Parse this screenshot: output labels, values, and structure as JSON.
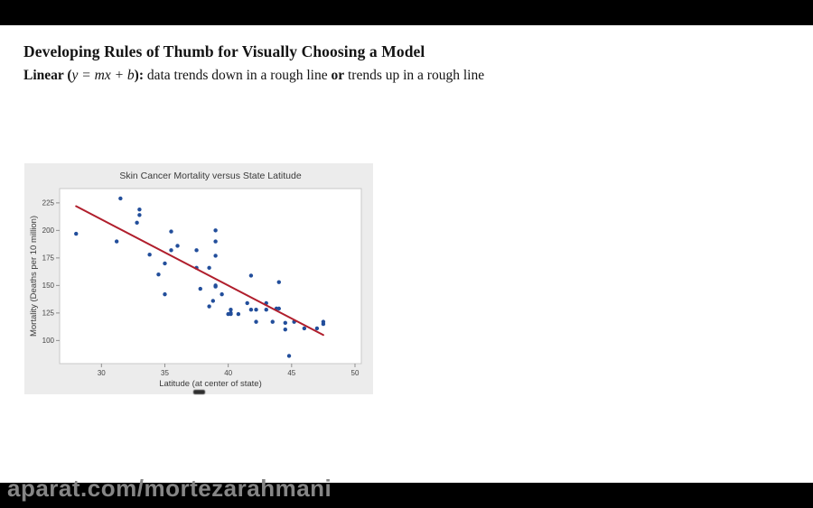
{
  "page": {
    "background": "#ffffff",
    "letterbox_color": "#000000"
  },
  "header": {
    "title": "Developing Rules of Thumb for Visually Choosing a Model",
    "subtitle_segments": [
      {
        "text": "Linear (",
        "style": "bold"
      },
      {
        "text": "y = mx + b",
        "style": "italic"
      },
      {
        "text": "):",
        "style": "bold"
      },
      {
        "text": " data trends down in a rough line ",
        "style": "normal"
      },
      {
        "text": "or",
        "style": "bold"
      },
      {
        "text": " trends up in a rough line",
        "style": "normal"
      }
    ]
  },
  "watermark": {
    "text": "aparat.com/mortezarahmani",
    "color": "#868686"
  },
  "chart_data": {
    "type": "scatter",
    "title": "Skin Cancer Mortality versus State Latitude",
    "xlabel": "Latitude (at center of state)",
    "ylabel": "Mortality (Deaths per 10 million)",
    "x_ticks": [
      30,
      35,
      40,
      45,
      50
    ],
    "y_ticks": [
      100,
      125,
      150,
      175,
      200,
      225
    ],
    "xlim": [
      26.7,
      50.5
    ],
    "ylim": [
      79,
      238
    ],
    "grid": false,
    "legend": "none",
    "panel_bg": "#ececec",
    "plot_bg": "#ffffff",
    "plot_border": "#c9c9c9",
    "point_color": "#224e9b",
    "line_color": "#b01e2c",
    "text_color": "#3a3a3a",
    "points": [
      [
        28.0,
        197
      ],
      [
        31.2,
        190
      ],
      [
        31.5,
        229
      ],
      [
        32.8,
        207
      ],
      [
        33.0,
        219
      ],
      [
        33.0,
        214
      ],
      [
        33.8,
        178
      ],
      [
        34.5,
        160
      ],
      [
        35.0,
        170
      ],
      [
        35.0,
        142
      ],
      [
        35.5,
        199
      ],
      [
        35.5,
        182
      ],
      [
        36.0,
        186
      ],
      [
        37.5,
        182
      ],
      [
        37.5,
        166
      ],
      [
        37.8,
        147
      ],
      [
        38.5,
        166
      ],
      [
        38.5,
        131
      ],
      [
        38.8,
        136
      ],
      [
        39.0,
        200
      ],
      [
        39.0,
        190
      ],
      [
        39.0,
        177
      ],
      [
        39.0,
        150
      ],
      [
        39.0,
        149
      ],
      [
        39.5,
        142
      ],
      [
        40.0,
        124
      ],
      [
        40.2,
        128
      ],
      [
        40.2,
        125
      ],
      [
        40.2,
        124
      ],
      [
        40.8,
        124
      ],
      [
        41.5,
        134
      ],
      [
        41.8,
        159
      ],
      [
        41.8,
        128
      ],
      [
        42.2,
        128
      ],
      [
        42.2,
        117
      ],
      [
        43.0,
        128
      ],
      [
        43.0,
        134
      ],
      [
        43.5,
        117
      ],
      [
        43.8,
        129
      ],
      [
        44.0,
        129
      ],
      [
        44.0,
        153
      ],
      [
        44.5,
        116
      ],
      [
        44.5,
        110
      ],
      [
        44.8,
        86
      ],
      [
        45.2,
        117
      ],
      [
        46.0,
        111
      ],
      [
        47.0,
        111
      ],
      [
        47.5,
        115
      ],
      [
        47.5,
        117
      ]
    ],
    "regression_line": {
      "x1": 28.0,
      "y1": 222,
      "x2": 47.5,
      "y2": 105
    }
  }
}
